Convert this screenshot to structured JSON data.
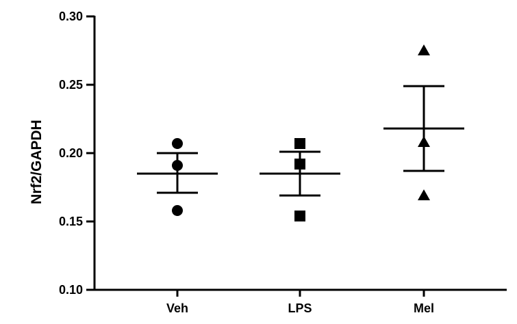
{
  "chart_data": {
    "type": "scatter",
    "title": "",
    "xlabel": "",
    "ylabel": "Nrf2/GAPDH",
    "ylim": [
      0.1,
      0.3
    ],
    "yticks": [
      0.1,
      0.15,
      0.2,
      0.25,
      0.3
    ],
    "ytick_labels": [
      "0.10",
      "0.15",
      "0.20",
      "0.25",
      "0.30"
    ],
    "categories": [
      "Veh",
      "LPS",
      "Mel"
    ],
    "grid": false,
    "groups": [
      {
        "category": "Veh",
        "marker": "circle",
        "points": [
          0.207,
          0.191,
          0.158
        ],
        "mean": 0.185,
        "sem_upper": 0.2,
        "sem_lower": 0.171
      },
      {
        "category": "LPS",
        "marker": "square",
        "points": [
          0.207,
          0.192,
          0.154
        ],
        "mean": 0.185,
        "sem_upper": 0.201,
        "sem_lower": 0.169
      },
      {
        "category": "Mel",
        "marker": "triangle",
        "points": [
          0.275,
          0.208,
          0.169
        ],
        "mean": 0.218,
        "sem_upper": 0.249,
        "sem_lower": 0.187
      }
    ]
  }
}
